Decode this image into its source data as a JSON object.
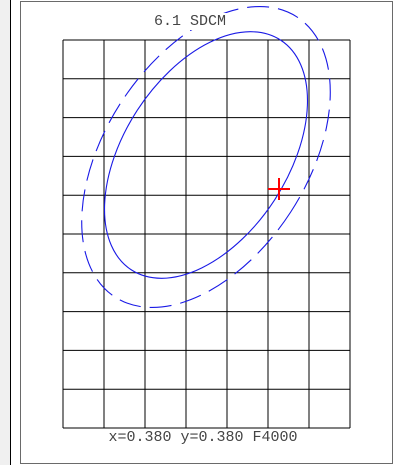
{
  "window": {
    "title": "6.1 SDCM"
  },
  "status": {
    "readout": "x=0.380 y=0.380 F4000"
  },
  "colors": {
    "grid": "#000000",
    "ellipse": "#1a1ae6",
    "marker": "#ff0000",
    "text": "#444444",
    "frame": "#6a6a6a",
    "background": "#ffffff"
  },
  "icons": {
    "target_marker": "red-plus-crosshair"
  },
  "chart_data": {
    "type": "diagram",
    "grid": {
      "columns": 7,
      "rows": 10,
      "visible": true
    },
    "ellipses": [
      {
        "name": "",
        "line_style": "solid"
      },
      {
        "name": "",
        "line_style": "dashed"
      }
    ],
    "marker": {
      "x": 0.38,
      "y": 0.38
    }
  }
}
